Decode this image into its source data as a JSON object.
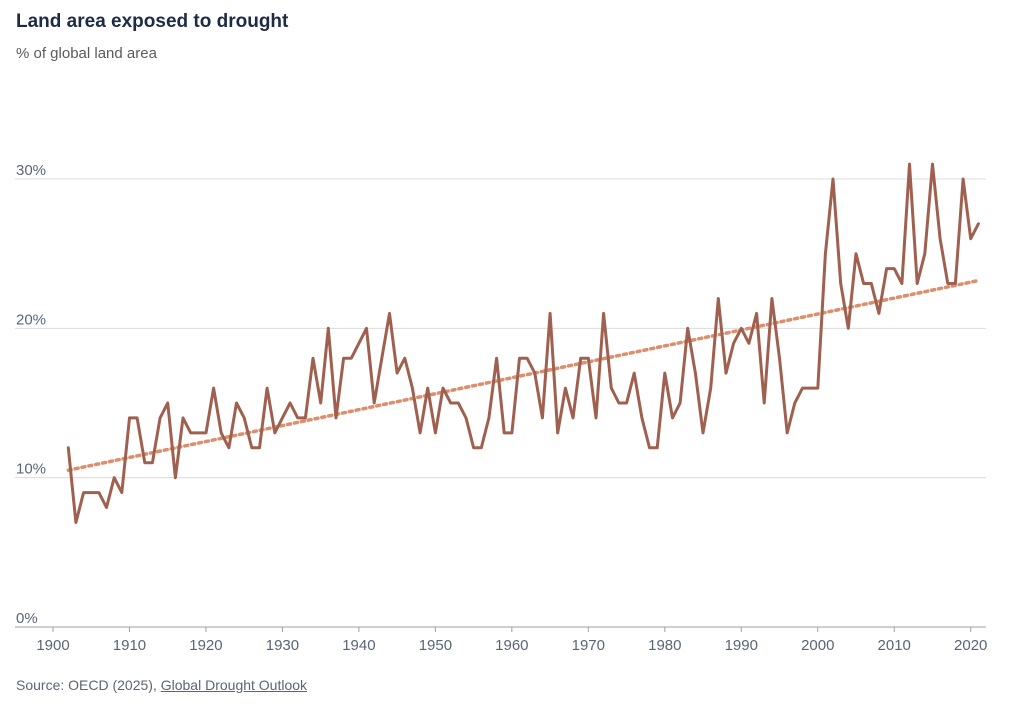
{
  "header": {
    "title": "Land area exposed to drought",
    "subtitle": "% of global land area"
  },
  "footer": {
    "source_prefix": "Source: OECD (2025), ",
    "source_link": "Global Drought Outlook"
  },
  "colors": {
    "series": "#a0604f",
    "trend": "#dc8f6c",
    "grid": "#dcdcdc",
    "axis": "#9aa0a8",
    "text": "#5b6576"
  },
  "chart_data": {
    "type": "line",
    "title": "Land area exposed to drought",
    "subtitle": "% of global land area",
    "xlabel": "",
    "ylabel": "",
    "xlim": [
      1900,
      2022
    ],
    "ylim": [
      0,
      30
    ],
    "grid": true,
    "yticks": [
      0,
      10,
      20,
      30
    ],
    "ytick_labels": [
      "0%",
      "10%",
      "20%",
      "30%"
    ],
    "xticks": [
      1900,
      1910,
      1920,
      1930,
      1940,
      1950,
      1960,
      1970,
      1980,
      1990,
      2000,
      2010,
      2020
    ],
    "xtick_labels": [
      "1900",
      "1910",
      "1920",
      "1930",
      "1940",
      "1950",
      "1960",
      "1970",
      "1980",
      "1990",
      "2000",
      "2010",
      "2020"
    ],
    "x": [
      1902,
      1903,
      1904,
      1905,
      1906,
      1907,
      1908,
      1909,
      1910,
      1911,
      1912,
      1913,
      1914,
      1915,
      1916,
      1917,
      1918,
      1919,
      1920,
      1921,
      1922,
      1923,
      1924,
      1925,
      1926,
      1927,
      1928,
      1929,
      1930,
      1931,
      1932,
      1933,
      1934,
      1935,
      1936,
      1937,
      1938,
      1939,
      1940,
      1941,
      1942,
      1943,
      1944,
      1945,
      1946,
      1947,
      1948,
      1949,
      1950,
      1951,
      1952,
      1953,
      1954,
      1955,
      1956,
      1957,
      1958,
      1959,
      1960,
      1961,
      1962,
      1963,
      1964,
      1965,
      1966,
      1967,
      1968,
      1969,
      1970,
      1971,
      1972,
      1973,
      1974,
      1975,
      1976,
      1977,
      1978,
      1979,
      1980,
      1981,
      1982,
      1983,
      1984,
      1985,
      1986,
      1987,
      1988,
      1989,
      1990,
      1991,
      1992,
      1993,
      1994,
      1995,
      1996,
      1997,
      1998,
      1999,
      2000,
      2001,
      2002,
      2003,
      2004,
      2005,
      2006,
      2007,
      2008,
      2009,
      2010,
      2011,
      2012,
      2013,
      2014,
      2015,
      2016,
      2017,
      2018,
      2019,
      2020,
      2021
    ],
    "series": [
      {
        "values": [
          12,
          7,
          9,
          9,
          9,
          8,
          10,
          9,
          14,
          14,
          11,
          11,
          14,
          15,
          10,
          14,
          13,
          13,
          13,
          16,
          13,
          12,
          15,
          14,
          12,
          12,
          16,
          13,
          14,
          15,
          14,
          14,
          18,
          15,
          20,
          14,
          18,
          18,
          19,
          20,
          15,
          18,
          21,
          17,
          18,
          16,
          13,
          16,
          13,
          16,
          15,
          15,
          14,
          12,
          12,
          14,
          18,
          13,
          13,
          18,
          18,
          17,
          14,
          21,
          13,
          16,
          14,
          18,
          18,
          14,
          21,
          16,
          15,
          15,
          17,
          14,
          12,
          12,
          17,
          14,
          15,
          20,
          17,
          13,
          16,
          22,
          17,
          19,
          20,
          19,
          21,
          15,
          22,
          18,
          13,
          15,
          16,
          16,
          16,
          25,
          30,
          23,
          20,
          25,
          23,
          23,
          21,
          24,
          24,
          23,
          31,
          23,
          25,
          31,
          26,
          23,
          23,
          30,
          26,
          27
        ]
      }
    ],
    "trend": {
      "x": [
        1902,
        2021
      ],
      "y": [
        10.5,
        23.2
      ],
      "style": "dotted"
    }
  }
}
